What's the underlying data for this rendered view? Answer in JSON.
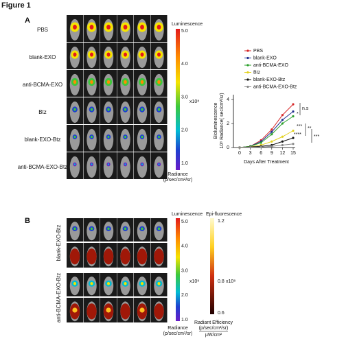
{
  "figure_title": "Figure 1",
  "panel_a": {
    "label": "A",
    "row_labels": [
      "PBS",
      "blank-EXO",
      "anti-BCMA-EXO",
      "Btz",
      "blank-EXO-Btz",
      "anti-BCMA-EXO-Btz"
    ],
    "colorbar": {
      "title": "Luminescence",
      "ticks": [
        "5.0",
        "4.0",
        "3.0",
        "2.0",
        "1.0"
      ],
      "exponent": "x10⁸",
      "unit_title": "Radiance",
      "unit": "(p/sec/cm²/sr)"
    }
  },
  "chart_data": {
    "type": "line",
    "xlabel": "Days After Treatment",
    "ylabel": [
      "Bioluminescence",
      "10⁸ Radiance( sec/cm²/sr)"
    ],
    "x": [
      0,
      3,
      6,
      9,
      12,
      15
    ],
    "xlim": [
      0,
      15
    ],
    "xticks": [
      0,
      3,
      6,
      9,
      12,
      15
    ],
    "ylim": [
      0,
      4.4
    ],
    "yticks": [
      0,
      2,
      4
    ],
    "legend": "top-left",
    "series": [
      {
        "name": "PBS",
        "color": "#d62728",
        "values": [
          0,
          0.1,
          0.6,
          1.5,
          2.7,
          3.6
        ]
      },
      {
        "name": "blank-EXO",
        "color": "#1f2f8f",
        "values": [
          0,
          0.1,
          0.5,
          1.3,
          2.3,
          3.0
        ]
      },
      {
        "name": "anti-BCMA-EXO",
        "color": "#2ca02c",
        "values": [
          0,
          0.1,
          0.4,
          1.1,
          2.0,
          2.6
        ]
      },
      {
        "name": "Btz",
        "color": "#e3d21f",
        "values": [
          0,
          0.05,
          0.2,
          0.5,
          0.9,
          1.4
        ]
      },
      {
        "name": "blank-EXO-Btz",
        "color": "#111111",
        "values": [
          0,
          0.05,
          0.1,
          0.2,
          0.5,
          0.8
        ]
      },
      {
        "name": "anti-BCMA-EXO-Btz",
        "color": "#888888",
        "values": [
          0,
          0.02,
          0.05,
          0.1,
          0.2,
          0.3
        ]
      }
    ],
    "annotations": [
      "n.s",
      "*",
      "***",
      "**",
      "****",
      "***"
    ]
  },
  "panel_b": {
    "label": "B",
    "row_labels": [
      "blank-EXO-Btz",
      "anti-BCMA-EXO-Btz"
    ],
    "luminescence_bar": {
      "title": "Luminescence",
      "ticks": [
        "5.0",
        "4.0",
        "3.0",
        "2.0",
        "1.0"
      ],
      "exponent": "x10⁸",
      "unit_title": "Radiance",
      "unit": "(p/sec/cm²/sr)"
    },
    "fluorescence_bar": {
      "title": "Epi-fluorescence",
      "ticks": [
        "1.2",
        "0.8",
        "0.6"
      ],
      "exponent": "x10⁸",
      "unit_title": "Radiant Efficiency",
      "unit": "(p/sec/cm²/sr)",
      "unit_denominator": "µW/cm²"
    }
  }
}
